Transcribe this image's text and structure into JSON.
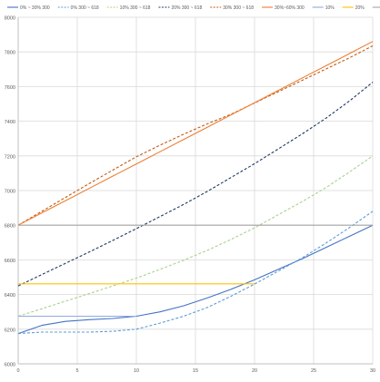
{
  "chart_data": {
    "type": "line",
    "title": "",
    "xlabel": "",
    "ylabel": "",
    "xlim": [
      0,
      30
    ],
    "ylim": [
      6000,
      8000
    ],
    "x_ticks": [
      0,
      5,
      10,
      15,
      20,
      25,
      30
    ],
    "y_ticks": [
      6000,
      6200,
      6400,
      6600,
      6800,
      7000,
      7200,
      7400,
      7600,
      7800,
      8000
    ],
    "grid": true,
    "legend_position": "top",
    "x": [
      0,
      2,
      4,
      6,
      8,
      10,
      12,
      14,
      16,
      18,
      20,
      22,
      24,
      26,
      28,
      30
    ],
    "series": [
      {
        "name": "0% ~ 30% 300",
        "color": "#4472C4",
        "dash": "solid",
        "values": [
          6175,
          6222,
          6245,
          6255,
          6262,
          6275,
          6300,
          6335,
          6380,
          6430,
          6485,
          6545,
          6605,
          6670,
          6735,
          6800
        ]
      },
      {
        "name": "0% 300 ~ 618",
        "color": "#5B9BD5",
        "dash": "dashed",
        "values": [
          6175,
          6183,
          6183,
          6183,
          6188,
          6200,
          6235,
          6275,
          6325,
          6390,
          6460,
          6535,
          6610,
          6695,
          6785,
          6880
        ]
      },
      {
        "name": "10% 300 ~ 618",
        "color": "#A9D18E",
        "dash": "dashed",
        "values": [
          6275,
          6318,
          6362,
          6405,
          6450,
          6495,
          6545,
          6598,
          6655,
          6718,
          6785,
          6860,
          6935,
          7015,
          7105,
          7200
        ]
      },
      {
        "name": "20% 300 ~ 618",
        "color": "#203864",
        "dash": "dashed",
        "values": [
          6450,
          6515,
          6580,
          6645,
          6712,
          6780,
          6850,
          6920,
          6995,
          7075,
          7155,
          7240,
          7325,
          7415,
          7515,
          7625
        ]
      },
      {
        "name": "30% 300 ~ 618",
        "color": "#C55A11",
        "dash": "dashed",
        "values": [
          6800,
          6880,
          6960,
          7040,
          7118,
          7195,
          7262,
          7325,
          7385,
          7440,
          7505,
          7570,
          7635,
          7700,
          7765,
          7835
        ]
      },
      {
        "name": "30%~60% 300",
        "color": "#ED7D31",
        "dash": "solid",
        "values": [
          6800,
          6871,
          6941,
          7012,
          7083,
          7153,
          7224,
          7295,
          7365,
          7436,
          7507,
          7577,
          7648,
          7719,
          7789,
          7860
        ]
      },
      {
        "name": "10%",
        "color": "#8FAADC",
        "dash": "solid",
        "values": [
          6275,
          6275,
          6275,
          6275,
          6275,
          6275,
          null,
          null,
          null,
          null,
          null,
          null,
          null,
          null,
          null,
          null
        ]
      },
      {
        "name": "20%",
        "color": "#FFC000",
        "dash": "solid",
        "values": [
          6462,
          6462,
          6462,
          6462,
          6462,
          6462,
          6462,
          6462,
          6462,
          6462,
          6462,
          null,
          null,
          null,
          null,
          null
        ]
      },
      {
        "name": "30%",
        "color": "#A5A5A5",
        "dash": "solid",
        "values": [
          6800,
          6800,
          6800,
          6800,
          6800,
          6800,
          6800,
          6800,
          6800,
          6800,
          6800,
          6800,
          6800,
          6800,
          6800,
          6800
        ]
      }
    ]
  }
}
